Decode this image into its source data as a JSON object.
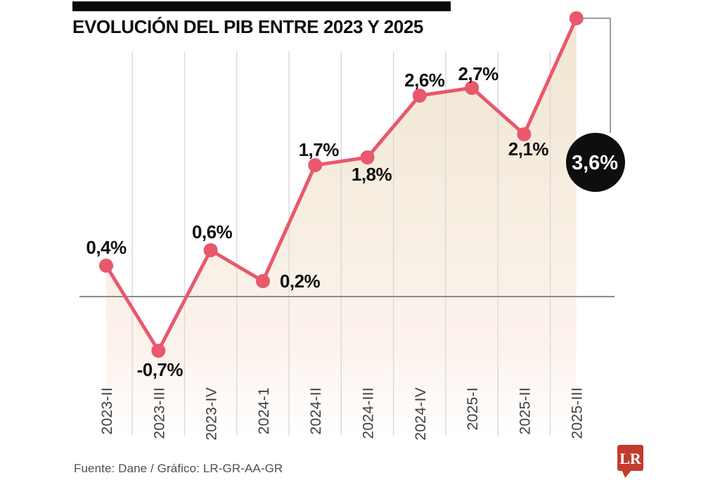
{
  "chart_data": {
    "type": "line",
    "title": "EVOLUCIÓN DEL PIB ENTRE 2023 Y 2025",
    "xlabel": "",
    "ylabel": "",
    "unit": "%",
    "categories": [
      "2023-II",
      "2023-III",
      "2023-IV",
      "2024-1",
      "2024-II",
      "2024-III",
      "2024-IV",
      "2025-I",
      "2025-II",
      "2025-III"
    ],
    "values": [
      0.4,
      -0.7,
      0.6,
      0.2,
      1.7,
      1.8,
      2.6,
      2.7,
      2.1,
      3.6
    ],
    "labels": [
      "0,4%",
      "-0,7%",
      "0,6%",
      "0,2%",
      "1,7%",
      "1,8%",
      "2,6%",
      "2,7%",
      "2,1%",
      "3,6%"
    ],
    "label_positions": [
      "above",
      "below",
      "above",
      "right",
      "above",
      "below",
      "above",
      "above",
      "below",
      "callout"
    ],
    "highlight_index": 9,
    "ylim": [
      -1.0,
      3.8
    ],
    "grid": "vertical-only",
    "legend": "none",
    "zero_line": true,
    "colors": {
      "line": "#e9586d",
      "point": "#e9586d",
      "area_top": "#f1e6d2",
      "area_bottom": "#ffffff",
      "gridline": "#d9d9d9",
      "zero_line": "#8c8c8c",
      "callout_bg": "#0e0e0e",
      "callout_text": "#ffffff",
      "data_label": "#111111",
      "tick_label": "#3f3f3f"
    }
  },
  "footer": {
    "source": "Fuente: Dane / Gráfico: LR-GR-AA-GR"
  },
  "logo": {
    "text": "LR",
    "color": "#c23b2e"
  }
}
